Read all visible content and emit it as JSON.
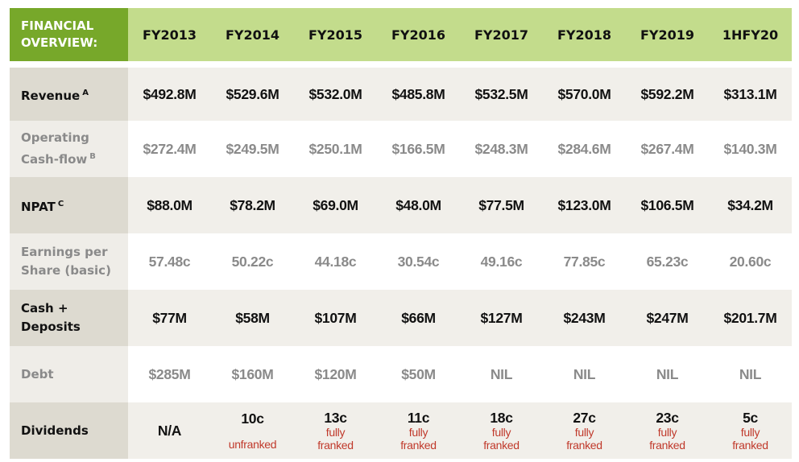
{
  "header": {
    "corner_line1": "FINANCIAL",
    "corner_line2": "OVERVIEW:",
    "years": [
      "FY2013",
      "FY2014",
      "FY2015",
      "FY2016",
      "FY2017",
      "FY2018",
      "FY2019",
      "1HFY20"
    ]
  },
  "rows": {
    "revenue": {
      "label": "Revenue",
      "note": "A",
      "values": [
        "$492.8M",
        "$529.6M",
        "$532.0M",
        "$485.8M",
        "$532.5M",
        "$570.0M",
        "$592.2M",
        "$313.1M"
      ]
    },
    "operating_cash_flow": {
      "label_line1": "Operating",
      "label_line2": "Cash-flow",
      "note": "B",
      "values": [
        "$272.4M",
        "$249.5M",
        "$250.1M",
        "$166.5M",
        "$248.3M",
        "$284.6M",
        "$267.4M",
        "$140.3M"
      ]
    },
    "npat": {
      "label": "NPAT",
      "note": "C",
      "values": [
        "$88.0M",
        "$78.2M",
        "$69.0M",
        "$48.0M",
        "$77.5M",
        "$123.0M",
        "$106.5M",
        "$34.2M"
      ]
    },
    "eps": {
      "label_line1": "Earnings per",
      "label_line2": "Share (basic)",
      "values": [
        "57.48c",
        "50.22c",
        "44.18c",
        "30.54c",
        "49.16c",
        "77.85c",
        "65.23c",
        "20.60c"
      ]
    },
    "cash_deposits": {
      "label_line1": "Cash +",
      "label_line2": "Deposits",
      "values": [
        "$77M",
        "$58M",
        "$107M",
        "$66M",
        "$127M",
        "$243M",
        "$247M",
        "$201.7M"
      ]
    },
    "debt": {
      "label": "Debt",
      "values": [
        "$285M",
        "$160M",
        "$120M",
        "$50M",
        "NIL",
        "NIL",
        "NIL",
        "NIL"
      ]
    },
    "dividends": {
      "label": "Dividends",
      "values": [
        {
          "amount": "N/A"
        },
        {
          "amount": "10c",
          "note1": "unfranked"
        },
        {
          "amount": "13c",
          "note1": "fully",
          "note2": "franked"
        },
        {
          "amount": "11c",
          "note1": "fully",
          "note2": "franked"
        },
        {
          "amount": "18c",
          "note1": "fully",
          "note2": "franked"
        },
        {
          "amount": "27c",
          "note1": "fully",
          "note2": "franked"
        },
        {
          "amount": "23c",
          "note1": "fully",
          "note2": "franked"
        },
        {
          "amount": "5c",
          "note1": "fully",
          "note2": "franked"
        }
      ]
    }
  }
}
